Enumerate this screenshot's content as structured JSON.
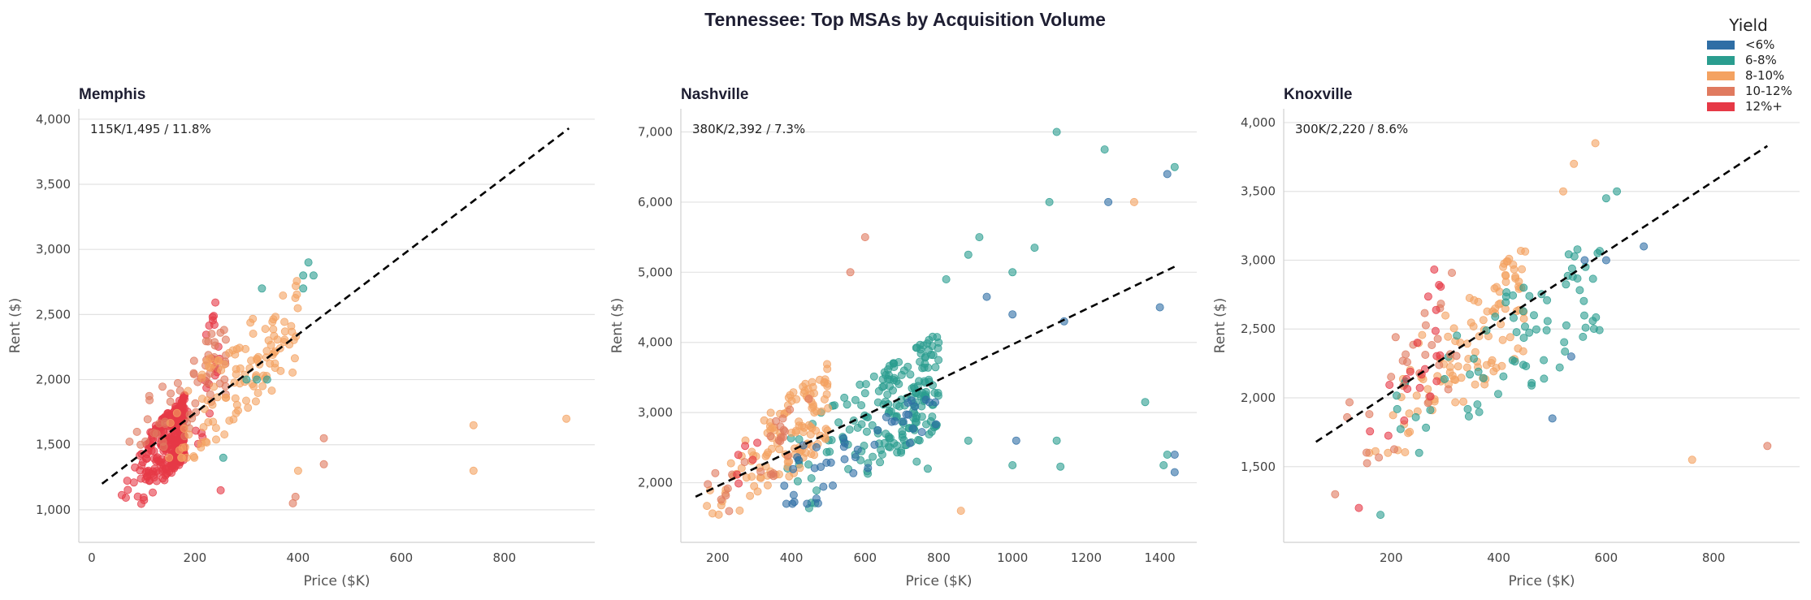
{
  "title": "Tennessee: Top MSAs by Acquisition Volume",
  "legend": {
    "title": "Yield",
    "entries": [
      {
        "label": "<6%",
        "color": "#2f6ea5"
      },
      {
        "label": "6-8%",
        "color": "#2a9d8f"
      },
      {
        "label": "8-10%",
        "color": "#f4a261"
      },
      {
        "label": "10-12%",
        "color": "#e07a5f"
      },
      {
        "label": "12%+",
        "color": "#e63946"
      }
    ]
  },
  "chart_data": [
    {
      "type": "scatter",
      "title": "Memphis",
      "xlabel": "Price ($K)",
      "ylabel": "Rent ($)",
      "annotation": "115K/1,495 / 11.8%",
      "xlim": [
        -25,
        975
      ],
      "ylim": [
        750,
        4080
      ],
      "xticks": [
        0,
        200,
        400,
        600,
        800
      ],
      "xtick_labels": [
        "0",
        "200",
        "400",
        "600",
        "800"
      ],
      "yticks": [
        1000,
        1500,
        2000,
        2500,
        3000,
        3500,
        4000
      ],
      "ytick_labels": [
        "1,000",
        "1,500",
        "2,000",
        "2,500",
        "3,000",
        "3,500",
        "4,000"
      ],
      "trend_line": {
        "x": [
          20,
          925
        ],
        "y": [
          1200,
          3930
        ]
      },
      "clusters": [
        {
          "bucket": 4,
          "n": 300,
          "x": [
            20,
            180
          ],
          "y": [
            900,
            2000
          ],
          "xs": 0.22
        },
        {
          "bucket": 4,
          "n": 25,
          "x": [
            180,
            250
          ],
          "y": [
            1300,
            3000
          ],
          "xs": 0.4
        },
        {
          "bucket": 3,
          "n": 55,
          "x": [
            60,
            260
          ],
          "y": [
            1300,
            2600
          ],
          "xs": 0.5
        },
        {
          "bucket": 2,
          "n": 120,
          "x": [
            140,
            400
          ],
          "y": [
            1400,
            2950
          ],
          "xs": 0.7
        }
      ],
      "points": [
        {
          "x": 255,
          "y": 1400,
          "bucket": 1
        },
        {
          "x": 300,
          "y": 2000,
          "bucket": 1
        },
        {
          "x": 320,
          "y": 2000,
          "bucket": 1
        },
        {
          "x": 340,
          "y": 2000,
          "bucket": 1
        },
        {
          "x": 330,
          "y": 2700,
          "bucket": 1
        },
        {
          "x": 420,
          "y": 2900,
          "bucket": 1
        },
        {
          "x": 430,
          "y": 2800,
          "bucket": 1
        },
        {
          "x": 410,
          "y": 2800,
          "bucket": 1
        },
        {
          "x": 410,
          "y": 2700,
          "bucket": 1
        },
        {
          "x": 740,
          "y": 1650,
          "bucket": 2
        },
        {
          "x": 920,
          "y": 1700,
          "bucket": 2
        },
        {
          "x": 740,
          "y": 1300,
          "bucket": 2
        },
        {
          "x": 450,
          "y": 1550,
          "bucket": 3
        },
        {
          "x": 450,
          "y": 1350,
          "bucket": 3
        },
        {
          "x": 400,
          "y": 1300,
          "bucket": 2
        },
        {
          "x": 395,
          "y": 1100,
          "bucket": 3
        },
        {
          "x": 390,
          "y": 1050,
          "bucket": 3
        },
        {
          "x": 250,
          "y": 1150,
          "bucket": 4
        }
      ]
    },
    {
      "type": "scatter",
      "title": "Nashville",
      "xlabel": "Price ($K)",
      "ylabel": "Rent ($)",
      "annotation": "380K/2,392 / 7.3%",
      "xlim": [
        100,
        1500
      ],
      "ylim": [
        1150,
        7330
      ],
      "xticks": [
        200,
        400,
        600,
        800,
        1000,
        1200,
        1400
      ],
      "xtick_labels": [
        "200",
        "400",
        "600",
        "800",
        "1000",
        "1200",
        "1400"
      ],
      "yticks": [
        2000,
        3000,
        4000,
        5000,
        6000,
        7000
      ],
      "ytick_labels": [
        "2,000",
        "3,000",
        "4,000",
        "5,000",
        "6,000",
        "7,000"
      ],
      "trend_line": {
        "x": [
          140,
          1440
        ],
        "y": [
          1800,
          5080
        ]
      },
      "clusters": [
        {
          "bucket": 1,
          "n": 200,
          "x": [
            250,
            800
          ],
          "y": [
            1400,
            4500
          ],
          "xs": 0.35
        },
        {
          "bucket": 2,
          "n": 130,
          "x": [
            150,
            500
          ],
          "y": [
            1400,
            4000
          ],
          "xs": 0.45
        },
        {
          "bucket": 0,
          "n": 45,
          "x": [
            380,
            800
          ],
          "y": [
            1700,
            4000
          ],
          "xs": 0.9
        },
        {
          "bucket": 3,
          "n": 25,
          "x": [
            150,
            450
          ],
          "y": [
            1500,
            3500
          ],
          "xs": 0.7
        },
        {
          "bucket": 4,
          "n": 6,
          "x": [
            150,
            350
          ],
          "y": [
            1700,
            3000
          ],
          "xs": 0.8
        }
      ],
      "points": [
        {
          "x": 1120,
          "y": 7000,
          "bucket": 1
        },
        {
          "x": 1250,
          "y": 6750,
          "bucket": 1
        },
        {
          "x": 1440,
          "y": 6500,
          "bucket": 1
        },
        {
          "x": 1420,
          "y": 6400,
          "bucket": 0
        },
        {
          "x": 1100,
          "y": 6000,
          "bucket": 1
        },
        {
          "x": 1260,
          "y": 6000,
          "bucket": 0
        },
        {
          "x": 1330,
          "y": 6000,
          "bucket": 2
        },
        {
          "x": 910,
          "y": 5500,
          "bucket": 1
        },
        {
          "x": 1060,
          "y": 5350,
          "bucket": 1
        },
        {
          "x": 880,
          "y": 5250,
          "bucket": 1
        },
        {
          "x": 1000,
          "y": 5000,
          "bucket": 1
        },
        {
          "x": 820,
          "y": 4900,
          "bucket": 1
        },
        {
          "x": 930,
          "y": 4650,
          "bucket": 0
        },
        {
          "x": 1000,
          "y": 4400,
          "bucket": 0
        },
        {
          "x": 1140,
          "y": 4300,
          "bucket": 0
        },
        {
          "x": 1400,
          "y": 4500,
          "bucket": 0
        },
        {
          "x": 600,
          "y": 5500,
          "bucket": 3
        },
        {
          "x": 560,
          "y": 5000,
          "bucket": 3
        },
        {
          "x": 1360,
          "y": 3150,
          "bucket": 1
        },
        {
          "x": 880,
          "y": 2600,
          "bucket": 1
        },
        {
          "x": 1010,
          "y": 2600,
          "bucket": 0
        },
        {
          "x": 1120,
          "y": 2600,
          "bucket": 1
        },
        {
          "x": 1420,
          "y": 2400,
          "bucket": 1
        },
        {
          "x": 1440,
          "y": 2400,
          "bucket": 0
        },
        {
          "x": 1410,
          "y": 2250,
          "bucket": 1
        },
        {
          "x": 1440,
          "y": 2150,
          "bucket": 0
        },
        {
          "x": 1000,
          "y": 2250,
          "bucket": 1
        },
        {
          "x": 1130,
          "y": 2230,
          "bucket": 1
        },
        {
          "x": 860,
          "y": 1600,
          "bucket": 2
        },
        {
          "x": 770,
          "y": 2200,
          "bucket": 1
        },
        {
          "x": 740,
          "y": 2300,
          "bucket": 1
        }
      ]
    },
    {
      "type": "scatter",
      "title": "Knoxville",
      "xlabel": "Price ($K)",
      "ylabel": "Rent ($)",
      "annotation": "300K/2,220 / 8.6%",
      "xlim": [
        0,
        960
      ],
      "ylim": [
        950,
        4100
      ],
      "xticks": [
        200,
        400,
        600,
        800
      ],
      "xtick_labels": [
        "200",
        "400",
        "600",
        "800"
      ],
      "yticks": [
        1500,
        2000,
        2500,
        3000,
        3500,
        4000
      ],
      "ytick_labels": [
        "1,500",
        "2,000",
        "2,500",
        "3,000",
        "3,500",
        "4,000"
      ],
      "trend_line": {
        "x": [
          60,
          900
        ],
        "y": [
          1680,
          3830
        ]
      },
      "clusters": [
        {
          "bucket": 2,
          "n": 110,
          "x": [
            150,
            450
          ],
          "y": [
            1600,
            3300
          ],
          "xs": 0.55
        },
        {
          "bucket": 1,
          "n": 75,
          "x": [
            200,
            600
          ],
          "y": [
            1600,
            3500
          ],
          "xs": 0.6
        },
        {
          "bucket": 3,
          "n": 30,
          "x": [
            80,
            330
          ],
          "y": [
            1300,
            3200
          ],
          "xs": 0.6
        },
        {
          "bucket": 4,
          "n": 22,
          "x": [
            100,
            300
          ],
          "y": [
            1200,
            3300
          ],
          "xs": 0.5
        }
      ],
      "points": [
        {
          "x": 670,
          "y": 3100,
          "bucket": 0
        },
        {
          "x": 600,
          "y": 3000,
          "bucket": 0
        },
        {
          "x": 560,
          "y": 3000,
          "bucket": 0
        },
        {
          "x": 535,
          "y": 2300,
          "bucket": 0
        },
        {
          "x": 500,
          "y": 1850,
          "bucket": 0
        },
        {
          "x": 580,
          "y": 3850,
          "bucket": 2
        },
        {
          "x": 760,
          "y": 1550,
          "bucket": 2
        },
        {
          "x": 900,
          "y": 1650,
          "bucket": 3
        },
        {
          "x": 180,
          "y": 1150,
          "bucket": 1
        },
        {
          "x": 620,
          "y": 3500,
          "bucket": 1
        },
        {
          "x": 600,
          "y": 3450,
          "bucket": 1
        },
        {
          "x": 520,
          "y": 3500,
          "bucket": 2
        },
        {
          "x": 540,
          "y": 3700,
          "bucket": 2
        }
      ]
    }
  ]
}
